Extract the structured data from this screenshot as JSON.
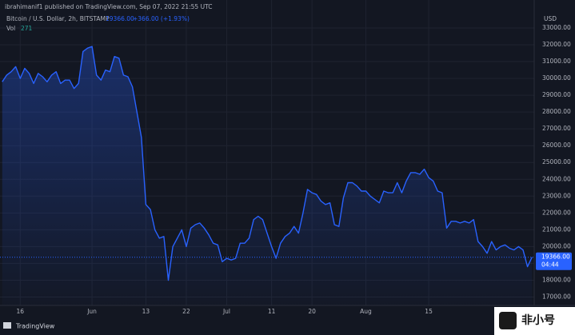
{
  "chart_data": {
    "type": "area",
    "title": "ibrahimanif1 published on TradingView.com, Sep 07, 2022 21:55 UTC",
    "symbol": "Bitcoin / U.S. Dollar, 2h, BITSTAMP",
    "last_price": {
      "value": 19366,
      "label": "19366.00"
    },
    "change_label": "+366.00 (+1.93%)",
    "volume_label": "Vol",
    "volume_value": 271,
    "y_axis_label": "USD",
    "countdown": "04:44",
    "footer": "TradingView",
    "watermark": "非小号",
    "color": "#2962ff",
    "grid": true,
    "categories": [
      null,
      null,
      null,
      null,
      "16",
      null,
      null,
      null,
      null,
      null,
      null,
      null,
      null,
      null,
      null,
      null,
      null,
      null,
      null,
      null,
      "Jun",
      null,
      null,
      null,
      null,
      null,
      null,
      null,
      null,
      null,
      null,
      null,
      "13",
      null,
      null,
      null,
      null,
      null,
      null,
      null,
      null,
      "22",
      null,
      null,
      null,
      null,
      null,
      null,
      null,
      null,
      "Jul",
      null,
      null,
      null,
      null,
      null,
      null,
      null,
      null,
      null,
      "11",
      null,
      null,
      null,
      null,
      null,
      null,
      null,
      null,
      "20",
      null,
      null,
      null,
      null,
      null,
      null,
      null,
      null,
      null,
      null,
      null,
      "Aug",
      null,
      null,
      null,
      null,
      null,
      null,
      null,
      null,
      null,
      null,
      null,
      null,
      null,
      "15",
      null,
      null,
      null,
      null,
      null,
      null,
      null,
      null,
      null,
      null,
      null,
      null,
      null,
      null,
      null,
      null,
      null,
      null,
      null,
      null,
      null,
      null,
      null
    ],
    "values": [
      29800,
      30200,
      30400,
      30700,
      30000,
      30600,
      30300,
      29700,
      30300,
      30100,
      29800,
      30200,
      30400,
      29700,
      29900,
      29900,
      29400,
      29700,
      31600,
      31800,
      31900,
      30200,
      29900,
      30500,
      30400,
      31300,
      31200,
      30200,
      30100,
      29500,
      28000,
      26500,
      22500,
      22200,
      21000,
      20500,
      20600,
      18000,
      20000,
      20500,
      21000,
      20000,
      21100,
      21300,
      21400,
      21100,
      20700,
      20200,
      20100,
      19100,
      19300,
      19200,
      19300,
      20200,
      20200,
      20500,
      21600,
      21800,
      21600,
      20800,
      20000,
      19300,
      20200,
      20600,
      20800,
      21200,
      20800,
      22000,
      23400,
      23200,
      23100,
      22700,
      22500,
      22600,
      21300,
      21200,
      22900,
      23800,
      23800,
      23600,
      23300,
      23300,
      23000,
      22800,
      22600,
      23300,
      23200,
      23200,
      23800,
      23200,
      23900,
      24400,
      24400,
      24300,
      24600,
      24100,
      23900,
      23300,
      23200,
      21100,
      21500,
      21500,
      21400,
      21500,
      21400,
      21600,
      20300,
      20000,
      19600,
      20300,
      19800,
      20000,
      20100,
      19900,
      19800,
      20000,
      19800,
      18800,
      19366
    ],
    "ylim": [
      16500,
      33950
    ],
    "yticks": [
      {
        "value": 17000,
        "label": "17000.00"
      },
      {
        "value": 18000,
        "label": "18000.00"
      },
      {
        "value": 19000,
        "label": "19000.00"
      },
      {
        "value": 20000,
        "label": "20000.00"
      },
      {
        "value": 21000,
        "label": "21000.00"
      },
      {
        "value": 22000,
        "label": "22000.00"
      },
      {
        "value": 23000,
        "label": "23000.00"
      },
      {
        "value": 24000,
        "label": "24000.00"
      },
      {
        "value": 25000,
        "label": "25000.00"
      },
      {
        "value": 26000,
        "label": "26000.00"
      },
      {
        "value": 27000,
        "label": "27000.00"
      },
      {
        "value": 28000,
        "label": "28000.00"
      },
      {
        "value": 29000,
        "label": "29000.00"
      },
      {
        "value": 30000,
        "label": "30000.00"
      },
      {
        "value": 31000,
        "label": "31000.00"
      },
      {
        "value": 32000,
        "label": "32000.00"
      },
      {
        "value": 33000,
        "label": "33000.00"
      }
    ]
  }
}
